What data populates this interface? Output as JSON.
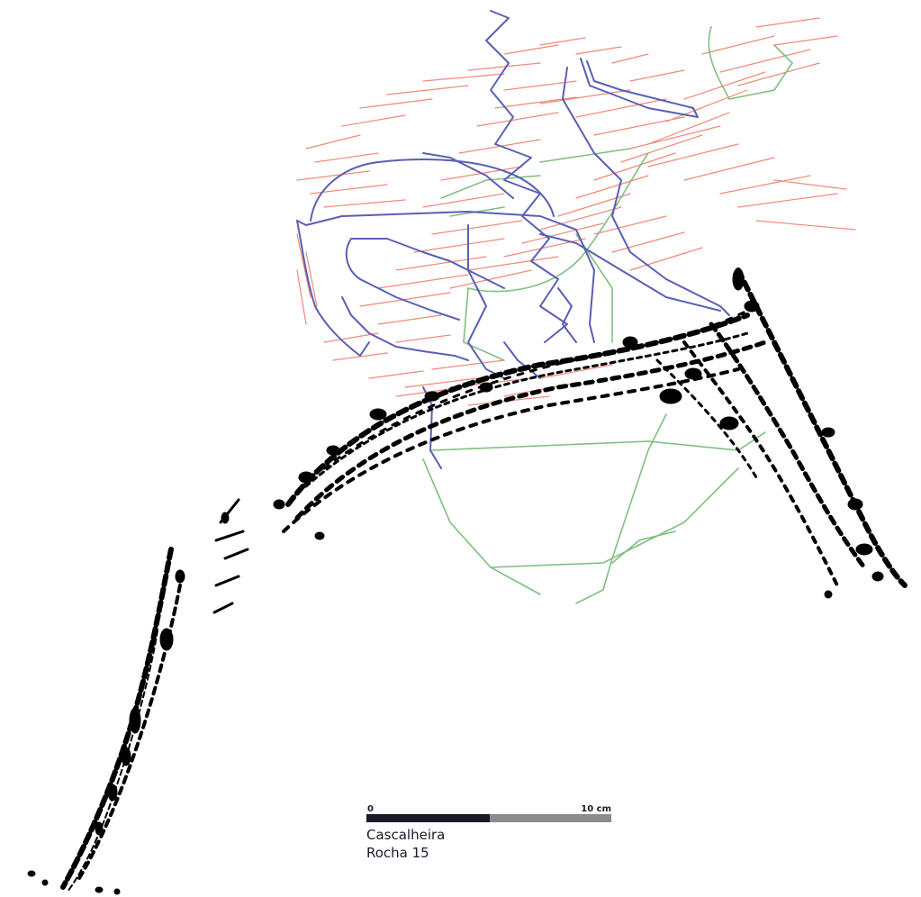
{
  "colors": {
    "background": "#ffffff",
    "engraving_black": "#000000",
    "horse_outline": "#5a5fb5",
    "fine_lines": "#ef8a78",
    "green_lines": "#7fbf7f",
    "scale_dark": "#1a1a2a",
    "scale_light": "#8a8c90"
  },
  "scale_bar": {
    "start_label": "0",
    "end_label": "10 cm"
  },
  "caption": {
    "site": "Cascalheira",
    "rock": "Rocha 15"
  }
}
